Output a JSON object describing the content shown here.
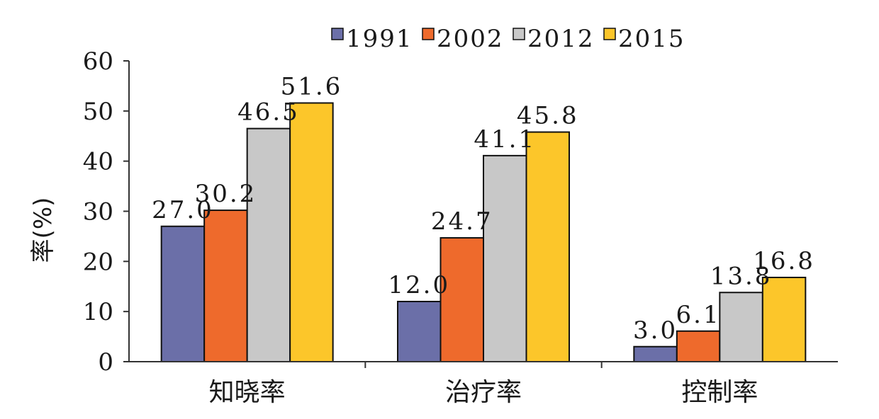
{
  "chart_data": {
    "type": "bar",
    "title": "",
    "xlabel": "",
    "ylabel": "率(%)",
    "ylim": [
      0,
      60
    ],
    "yticks": [
      "0",
      "10",
      "20",
      "30",
      "40",
      "50",
      "60"
    ],
    "categories": [
      "知晓率",
      "治疗率",
      "控制率"
    ],
    "series": [
      {
        "name": "1991",
        "color": "#6b6fa8",
        "values": [
          27.0,
          12.0,
          3.0
        ],
        "labels": [
          "27.0",
          "12.0",
          "3.0"
        ]
      },
      {
        "name": "2002",
        "color": "#ee6a2c",
        "values": [
          30.2,
          24.7,
          6.1
        ],
        "labels": [
          "30.2",
          "24.7",
          "6.1"
        ]
      },
      {
        "name": "2012",
        "color": "#c8c8c8",
        "values": [
          46.5,
          41.1,
          13.8
        ],
        "labels": [
          "46.5",
          "41.1",
          "13.8"
        ]
      },
      {
        "name": "2015",
        "color": "#fcc62a",
        "values": [
          51.6,
          45.8,
          16.8
        ],
        "labels": [
          "51.6",
          "45.8",
          "16.8"
        ]
      }
    ],
    "legend_position": "top",
    "grid": false
  }
}
